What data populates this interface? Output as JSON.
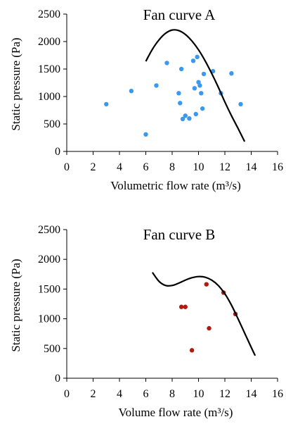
{
  "colors": {
    "panel_a_points": "#3a98f0",
    "panel_b_points": "#b01a10",
    "curve": "#000000",
    "axis": "#000000"
  },
  "chart_data": [
    {
      "type": "scatter",
      "title": "Fan curve A",
      "xlabel": "Volumetric flow rate (m³/s)",
      "ylabel": "Static pressure (Pa)",
      "xlim": [
        0,
        16
      ],
      "ylim": [
        0,
        2500
      ],
      "xticks": [
        "0",
        "2",
        "4",
        "6",
        "8",
        "10",
        "12",
        "14",
        "16"
      ],
      "yticks": [
        "0",
        "500",
        "1000",
        "1500",
        "2000",
        "2500"
      ],
      "grid": false,
      "series": [
        {
          "kind": "points",
          "x": [
            3.0,
            4.9,
            6.0,
            6.8,
            7.6,
            8.5,
            8.6,
            8.7,
            8.8,
            9.0,
            9.3,
            9.6,
            9.7,
            9.8,
            9.9,
            10.0,
            10.1,
            10.2,
            10.3,
            10.4,
            11.1,
            11.7,
            12.5,
            13.2
          ],
          "y": [
            860,
            1100,
            310,
            1200,
            1610,
            1060,
            880,
            1500,
            590,
            650,
            600,
            1650,
            1150,
            680,
            1720,
            1260,
            1200,
            1060,
            780,
            1410,
            1460,
            1060,
            1420,
            860
          ]
        },
        {
          "kind": "curve",
          "x": [
            6.0,
            6.5,
            7.0,
            7.5,
            8.0,
            8.5,
            9.0,
            9.5,
            10.0,
            10.5,
            11.0,
            11.5,
            12.0,
            12.5,
            13.0,
            13.5
          ],
          "y": [
            1640,
            1860,
            2030,
            2150,
            2210,
            2200,
            2130,
            2010,
            1850,
            1650,
            1420,
            1170,
            900,
            650,
            420,
            180
          ]
        }
      ]
    },
    {
      "type": "scatter",
      "title": "Fan curve B",
      "xlabel": "Volume flow rate (m³/s)",
      "ylabel": "Static pressure (Pa)",
      "xlim": [
        0,
        16
      ],
      "ylim": [
        0,
        2500
      ],
      "xticks": [
        "0",
        "2",
        "4",
        "6",
        "8",
        "10",
        "12",
        "14",
        "16"
      ],
      "yticks": [
        "0",
        "500",
        "1000",
        "1500",
        "2000",
        "2500"
      ],
      "grid": false,
      "series": [
        {
          "kind": "points",
          "x": [
            8.7,
            9.0,
            9.5,
            10.6,
            10.8,
            11.9,
            12.8
          ],
          "y": [
            1200,
            1200,
            470,
            1580,
            840,
            1440,
            1080
          ]
        },
        {
          "kind": "curve",
          "x": [
            6.5,
            7.0,
            7.5,
            8.0,
            8.5,
            9.0,
            9.5,
            10.0,
            10.5,
            11.0,
            11.5,
            12.0,
            12.5,
            13.0,
            13.5,
            14.0,
            14.3
          ],
          "y": [
            1780,
            1630,
            1560,
            1560,
            1600,
            1650,
            1690,
            1710,
            1700,
            1650,
            1560,
            1420,
            1230,
            1000,
            760,
            520,
            380
          ]
        }
      ]
    }
  ]
}
